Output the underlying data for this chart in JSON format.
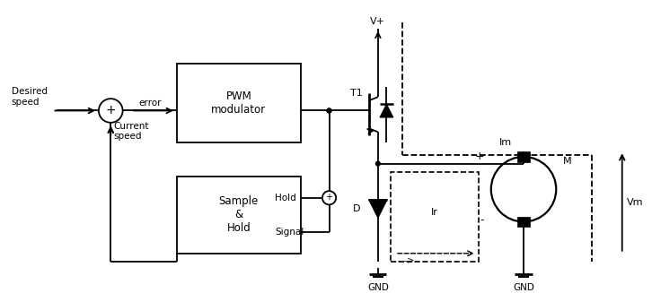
{
  "bg_color": "#ffffff",
  "line_color": "#000000",
  "fig_width": 7.26,
  "fig_height": 3.27,
  "dpi": 100,
  "labels": {
    "desired_speed": "Desired\nspeed",
    "current_speed": "Current\nspeed",
    "error": "error",
    "pwm_title": "PWM\nmodulator",
    "sample_hold_title": "Sample\n&\nHold",
    "hold": "Hold",
    "signal": "Signal",
    "t1": "T1",
    "d": "D",
    "ir": "Ir",
    "im": "Im",
    "vm": "Vm",
    "vplus": "V+",
    "gnd1": "GND",
    "gnd2": "GND",
    "m": "M"
  }
}
